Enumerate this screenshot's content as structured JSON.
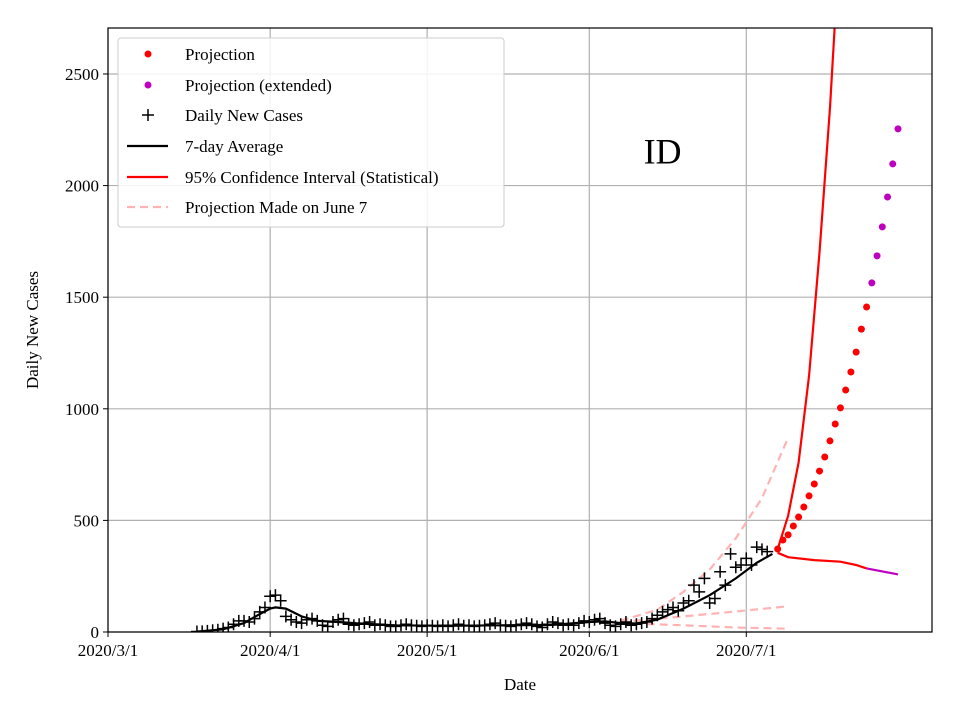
{
  "chart_data": {
    "type": "line",
    "title": "",
    "annotation": {
      "text": "ID",
      "x_day": 106,
      "y": 2100
    },
    "xlabel": "Date",
    "ylabel": "Daily New Cases",
    "x_origin": "2020-03-01",
    "xlim": [
      0,
      157.5
    ],
    "ylim": [
      0,
      2706
    ],
    "grid": true,
    "legend_position": "top-left",
    "xticks": [
      {
        "day": 0,
        "label": "2020/3/1"
      },
      {
        "day": 31,
        "label": "2020/4/1"
      },
      {
        "day": 61,
        "label": "2020/5/1"
      },
      {
        "day": 92,
        "label": "2020/6/1"
      },
      {
        "day": 122,
        "label": "2020/7/1"
      }
    ],
    "yticks": [
      {
        "v": 0,
        "label": "0"
      },
      {
        "v": 500,
        "label": "500"
      },
      {
        "v": 1000,
        "label": "1000"
      },
      {
        "v": 1500,
        "label": "1500"
      },
      {
        "v": 2000,
        "label": "2000"
      },
      {
        "v": 2500,
        "label": "2500"
      }
    ],
    "series": [
      {
        "name": "Projection",
        "kind": "dots",
        "color": "#ff0000",
        "start_day": 128,
        "values": [
          372,
          412,
          435,
          475,
          515,
          560,
          610,
          663,
          721,
          784,
          856,
          932,
          1004,
          1084,
          1165,
          1254,
          1357,
          1456
        ]
      },
      {
        "name": "Projection (extended)",
        "kind": "dots",
        "color": "#bf00bf",
        "start_day": 146,
        "values": [
          1564,
          1685,
          1815,
          1949,
          2097,
          2254
        ]
      },
      {
        "name": "Daily New Cases",
        "kind": "plus",
        "color": "#000000",
        "start_day": 17,
        "values": [
          2,
          3,
          5,
          8,
          10,
          15,
          20,
          35,
          50,
          50,
          45,
          60,
          90,
          110,
          160,
          165,
          140,
          70,
          55,
          45,
          40,
          55,
          60,
          50,
          30,
          25,
          45,
          55,
          60,
          35,
          30,
          35,
          40,
          45,
          30,
          35,
          30,
          25,
          25,
          30,
          35,
          30,
          28,
          25,
          30,
          28,
          25,
          30,
          25,
          30,
          35,
          28,
          30,
          25,
          28,
          30,
          35,
          40,
          30,
          28,
          25,
          30,
          35,
          40,
          35,
          25,
          20,
          35,
          45,
          40,
          30,
          35,
          30,
          40,
          50,
          45,
          55,
          60,
          40,
          30,
          25,
          35,
          45,
          30,
          35,
          40,
          45,
          60,
          75,
          90,
          100,
          110,
          95,
          130,
          140,
          210,
          180,
          240,
          130,
          150,
          270,
          210,
          350,
          290,
          300,
          330,
          300,
          380,
          370,
          360
        ]
      },
      {
        "name": "7-day Average",
        "kind": "line",
        "color": "#000000",
        "points": [
          [
            17,
            2
          ],
          [
            22,
            12
          ],
          [
            26,
            40
          ],
          [
            29,
            80
          ],
          [
            31,
            105
          ],
          [
            32,
            110
          ],
          [
            34,
            105
          ],
          [
            37,
            70
          ],
          [
            40,
            50
          ],
          [
            44,
            45
          ],
          [
            48,
            38
          ],
          [
            55,
            30
          ],
          [
            65,
            28
          ],
          [
            75,
            30
          ],
          [
            85,
            32
          ],
          [
            92,
            45
          ],
          [
            95,
            48
          ],
          [
            98,
            40
          ],
          [
            101,
            38
          ],
          [
            105,
            55
          ],
          [
            110,
            105
          ],
          [
            115,
            165
          ],
          [
            120,
            240
          ],
          [
            124,
            310
          ],
          [
            127,
            350
          ]
        ]
      },
      {
        "name": "95% Confidence Interval (Statistical)",
        "kind": "line",
        "color": "#ff0000",
        "upper": [
          [
            128,
            372
          ],
          [
            130,
            520
          ],
          [
            132,
            760
          ],
          [
            134,
            1150
          ],
          [
            136,
            1700
          ],
          [
            138,
            2350
          ],
          [
            139,
            2750
          ]
        ],
        "lower": [
          [
            128,
            355
          ],
          [
            130,
            335
          ],
          [
            135,
            322
          ],
          [
            140,
            315
          ],
          [
            143,
            300
          ],
          [
            145,
            285
          ]
        ],
        "lower_extended": [
          [
            145,
            285
          ],
          [
            151,
            258
          ]
        ],
        "extended_color": "#bf00bf"
      },
      {
        "name": "Projection Made on June 7",
        "kind": "dashed",
        "color": "#ffb3b3",
        "upper": [
          [
            98,
            50
          ],
          [
            105,
            100
          ],
          [
            110,
            180
          ],
          [
            115,
            280
          ],
          [
            120,
            420
          ],
          [
            125,
            600
          ],
          [
            130,
            870
          ]
        ],
        "middle": [
          [
            98,
            45
          ],
          [
            110,
            70
          ],
          [
            120,
            92
          ],
          [
            130,
            115
          ]
        ],
        "lower": [
          [
            98,
            40
          ],
          [
            110,
            30
          ],
          [
            120,
            20
          ],
          [
            130,
            15
          ]
        ]
      }
    ]
  }
}
